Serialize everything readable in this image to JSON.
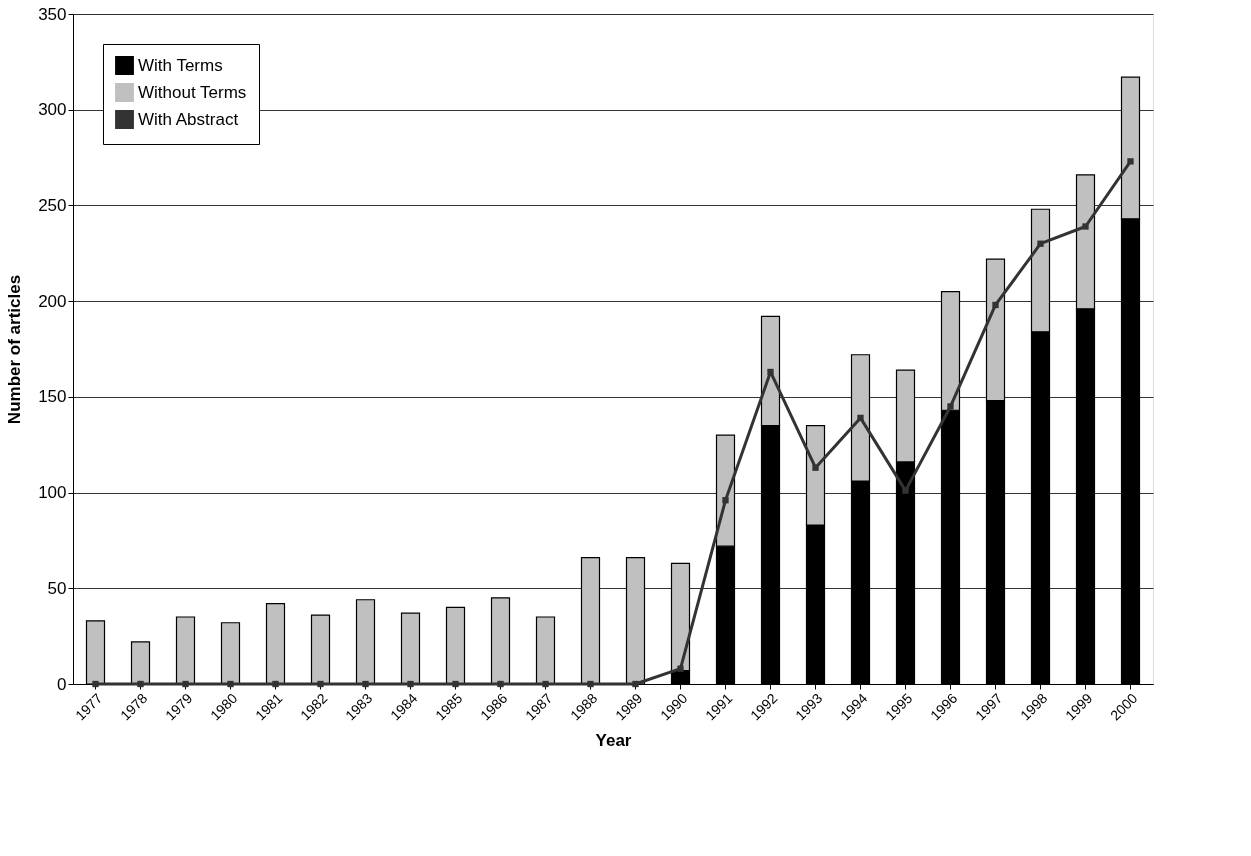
{
  "chart_data": {
    "type": "bar",
    "stacked": true,
    "xlabel": "Year",
    "ylabel": "Number of articles",
    "categories": [
      "1977",
      "1978",
      "1979",
      "1980",
      "1981",
      "1982",
      "1983",
      "1984",
      "1985",
      "1986",
      "1987",
      "1988",
      "1989",
      "1990",
      "1991",
      "1992",
      "1993",
      "1994",
      "1995",
      "1996",
      "1997",
      "1998",
      "1999",
      "2000"
    ],
    "series": [
      {
        "name": "With Terms",
        "color": "#000000",
        "values": [
          0,
          0,
          0,
          0,
          0,
          0,
          0,
          0,
          0,
          0,
          0,
          0,
          0,
          7,
          72,
          135,
          83,
          106,
          116,
          143,
          148,
          184,
          196,
          243
        ]
      },
      {
        "name": "Without Terms",
        "color": "#c0c0c0",
        "values": [
          33,
          22,
          35,
          32,
          42,
          36,
          44,
          37,
          40,
          45,
          35,
          66,
          66,
          56,
          58,
          57,
          52,
          66,
          48,
          62,
          74,
          64,
          70,
          74
        ]
      },
      {
        "name": "With Abstract",
        "type": "line",
        "color": "#333333",
        "values": [
          0,
          0,
          0,
          0,
          0,
          0,
          0,
          0,
          0,
          0,
          0,
          0,
          0,
          8,
          96,
          163,
          113,
          139,
          101,
          145,
          198,
          230,
          239,
          273
        ]
      }
    ],
    "ylim": [
      0,
      350
    ],
    "yticks": [
      0,
      50,
      100,
      150,
      200,
      250,
      300,
      350
    ],
    "grid": "y",
    "legend": "top left",
    "marker": "square",
    "line_style": "solid"
  }
}
